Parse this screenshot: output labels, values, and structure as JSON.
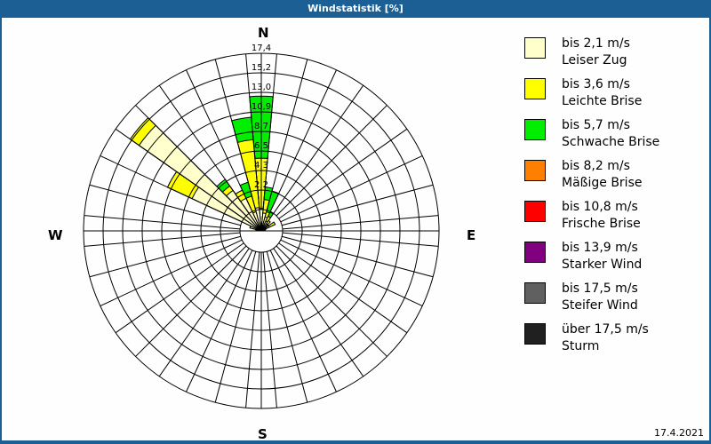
{
  "window": {
    "title": "Windstatistik [%]"
  },
  "date": "17.4.2021",
  "compass": {
    "n": "N",
    "e": "E",
    "s": "S",
    "w": "W"
  },
  "legend": [
    {
      "range": "bis 2,1 m/s",
      "name": "Leiser Zug",
      "color": "#ffffcc"
    },
    {
      "range": "bis 3,6 m/s",
      "name": "Leichte Brise",
      "color": "#ffff00"
    },
    {
      "range": "bis 5,7 m/s",
      "name": "Schwache Brise",
      "color": "#00ee00"
    },
    {
      "range": "bis 8,2 m/s",
      "name": "Mäßige Brise",
      "color": "#ff8000"
    },
    {
      "range": "bis 10,8 m/s",
      "name": "Frische Brise",
      "color": "#ff0000"
    },
    {
      "range": "bis 13,9 m/s",
      "name": "Starker Wind",
      "color": "#800080"
    },
    {
      "range": "bis 17,5 m/s",
      "name": "Steifer Wind",
      "color": "#606060"
    },
    {
      "range": "über 17,5 m/s",
      "name": "Sturm",
      "color": "#202020"
    }
  ],
  "chart_data": {
    "type": "wind-rose",
    "title": "Windstatistik [%]",
    "ring_labels": [
      "2,2",
      "4,3",
      "6,5",
      "8,7",
      "10,9",
      "13,0",
      "15,2",
      "17,4"
    ],
    "rmax": 17.4,
    "sector_width_deg": 10,
    "series_names": [
      "Leiser Zug",
      "Leichte Brise",
      "Schwache Brise"
    ],
    "series_colors": [
      "#ffffcc",
      "#ffff00",
      "#00ee00"
    ],
    "sectors": [
      {
        "dir": 0,
        "cumulative": [
          2.5,
          8.1,
          15.0
        ]
      },
      {
        "dir": 10,
        "cumulative": [
          2.0,
          3.5,
          4.9
        ]
      },
      {
        "dir": 20,
        "cumulative": [
          1.6,
          2.2,
          4.6
        ]
      },
      {
        "dir": 30,
        "cumulative": [
          1.2,
          1.8,
          2.3
        ]
      },
      {
        "dir": 40,
        "cumulative": [
          1.0,
          1.4,
          1.4
        ]
      },
      {
        "dir": 50,
        "cumulative": [
          0.8,
          1.0,
          1.0
        ]
      },
      {
        "dir": 60,
        "cumulative": [
          1.0,
          1.7,
          1.7
        ]
      },
      {
        "dir": 70,
        "cumulative": [
          0.5,
          0.5,
          0.5
        ]
      },
      {
        "dir": 280,
        "cumulative": [
          0.6,
          0.6,
          0.6
        ]
      },
      {
        "dir": 290,
        "cumulative": [
          1.3,
          1.3,
          1.3
        ]
      },
      {
        "dir": 300,
        "cumulative": [
          8.5,
          11.5,
          11.5
        ]
      },
      {
        "dir": 310,
        "cumulative": [
          16.6,
          17.8,
          17.8
        ]
      },
      {
        "dir": 320,
        "cumulative": [
          5.5,
          6.1,
          7.0
        ]
      },
      {
        "dir": 330,
        "cumulative": [
          4.0,
          5.0,
          5.0
        ]
      },
      {
        "dir": 340,
        "cumulative": [
          2.2,
          4.0,
          5.6
        ]
      },
      {
        "dir": 350,
        "cumulative": [
          2.6,
          10.2,
          12.7
        ]
      }
    ]
  }
}
